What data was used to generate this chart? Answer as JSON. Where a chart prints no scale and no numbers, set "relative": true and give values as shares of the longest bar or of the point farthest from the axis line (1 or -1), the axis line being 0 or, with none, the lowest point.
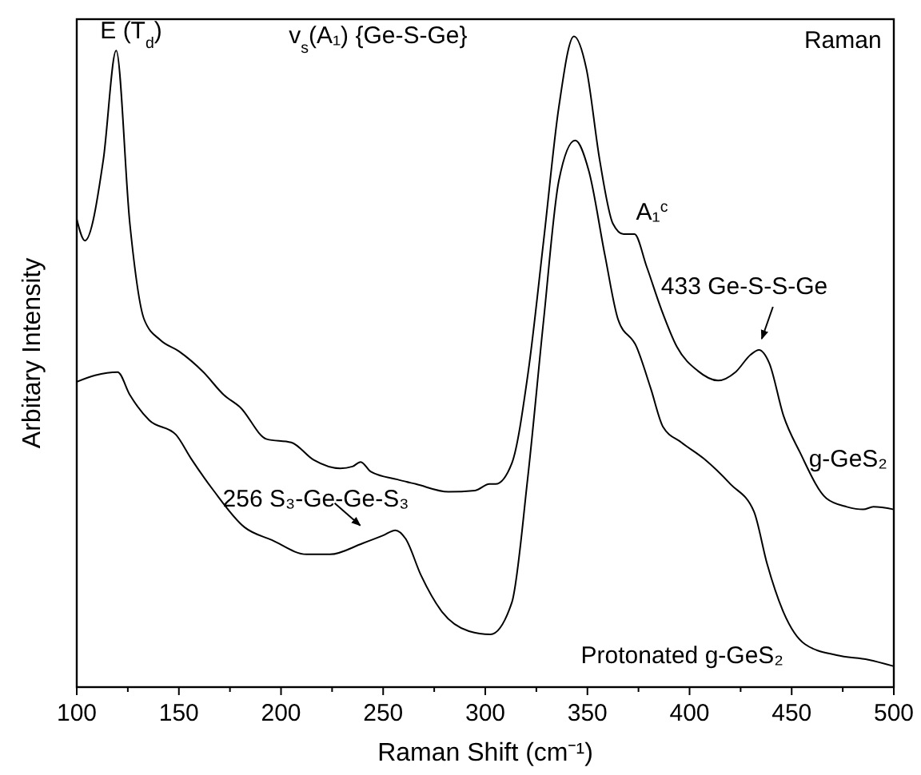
{
  "chart_data": {
    "type": "line",
    "relative": true,
    "xlabel": "Raman Shift (cm⁻¹)",
    "ylabel": "Arbitary Intensity",
    "xlim": [
      100,
      500
    ],
    "xticks": [
      100,
      {
        "value": 125,
        "label": null
      },
      150,
      {
        "value": 175,
        "label": null
      },
      200,
      {
        "value": 225,
        "label": null
      },
      250,
      {
        "value": 275,
        "label": null
      },
      300,
      {
        "value": 325,
        "label": null
      },
      350,
      {
        "value": 375,
        "label": null
      },
      400,
      {
        "value": 425,
        "label": null
      },
      450,
      {
        "value": 475,
        "label": null
      },
      500
    ],
    "tick_labels": "x",
    "line_style": "solid",
    "series": [
      {
        "name": "g-GeS₂",
        "color": "#000000",
        "x": [
          100,
          104,
          113,
          119.3,
          126,
          133,
          141,
          150,
          162,
          172,
          180,
          193,
          205,
          216,
          229,
          235,
          239,
          244,
          257,
          266,
          282,
          295,
          302,
          305,
          313,
          321,
          328.6,
          336,
          343.4,
          349.5,
          356,
          362.5,
          367.7,
          373,
          379,
          386,
          393.8,
          404,
          414,
          422.5,
          430,
          434,
          439,
          446,
          454,
          467,
          477,
          485,
          490,
          500
        ],
        "values": [
          0.719,
          0.686,
          0.81,
          0.978,
          0.712,
          0.565,
          0.533,
          0.516,
          0.484,
          0.449,
          0.43,
          0.381,
          0.376,
          0.349,
          0.336,
          0.339,
          0.346,
          0.331,
          0.319,
          0.312,
          0.3,
          0.302,
          0.312,
          0.312,
          0.344,
          0.484,
          0.687,
          0.891,
          1.0,
          0.95,
          0.81,
          0.712,
          0.696,
          0.696,
          0.646,
          0.582,
          0.523,
          0.486,
          0.471,
          0.484,
          0.511,
          0.518,
          0.498,
          0.417,
          0.361,
          0.29,
          0.277,
          0.273,
          0.277,
          0.273
        ]
      },
      {
        "name": "Protonated g-GeS₂",
        "color": "#000000",
        "x": [
          100,
          109,
          120,
          126,
          135.5,
          148.5,
          156,
          167,
          182,
          195.5,
          212.5,
          224,
          240,
          250,
          256,
          261,
          268.5,
          279,
          292,
          302.5,
          313,
          320.7,
          328.6,
          336,
          344,
          350.7,
          358.6,
          365,
          374,
          381,
          387,
          396,
          407,
          420,
          431.5,
          438,
          446,
          456.5,
          472,
          487.5,
          500
        ],
        "values": [
          0.469,
          0.479,
          0.484,
          0.449,
          0.41,
          0.388,
          0.351,
          0.302,
          0.246,
          0.226,
          0.204,
          0.204,
          0.221,
          0.233,
          0.241,
          0.228,
          0.172,
          0.115,
          0.086,
          0.081,
          0.13,
          0.319,
          0.565,
          0.778,
          0.84,
          0.793,
          0.663,
          0.565,
          0.523,
          0.459,
          0.4,
          0.376,
          0.351,
          0.312,
          0.27,
          0.189,
          0.115,
          0.066,
          0.049,
          0.042,
          0.032
        ]
      }
    ],
    "annotations": [
      {
        "text": "E (T$_{d}$)",
        "x": 119.3,
        "y": 0.978
      },
      "v$_{s}$(A₁) {Ge-S-Ge}",
      "Raman",
      {
        "text": "A₁$^{c}$",
        "x": 373,
        "y": 0.696
      },
      {
        "text": "433 Ge-S-S-Ge",
        "x": 433,
        "y": 0.518
      },
      {
        "text": "256 S₃-Ge-Ge-S₃",
        "x": 256,
        "y": 0.241
      }
    ]
  }
}
